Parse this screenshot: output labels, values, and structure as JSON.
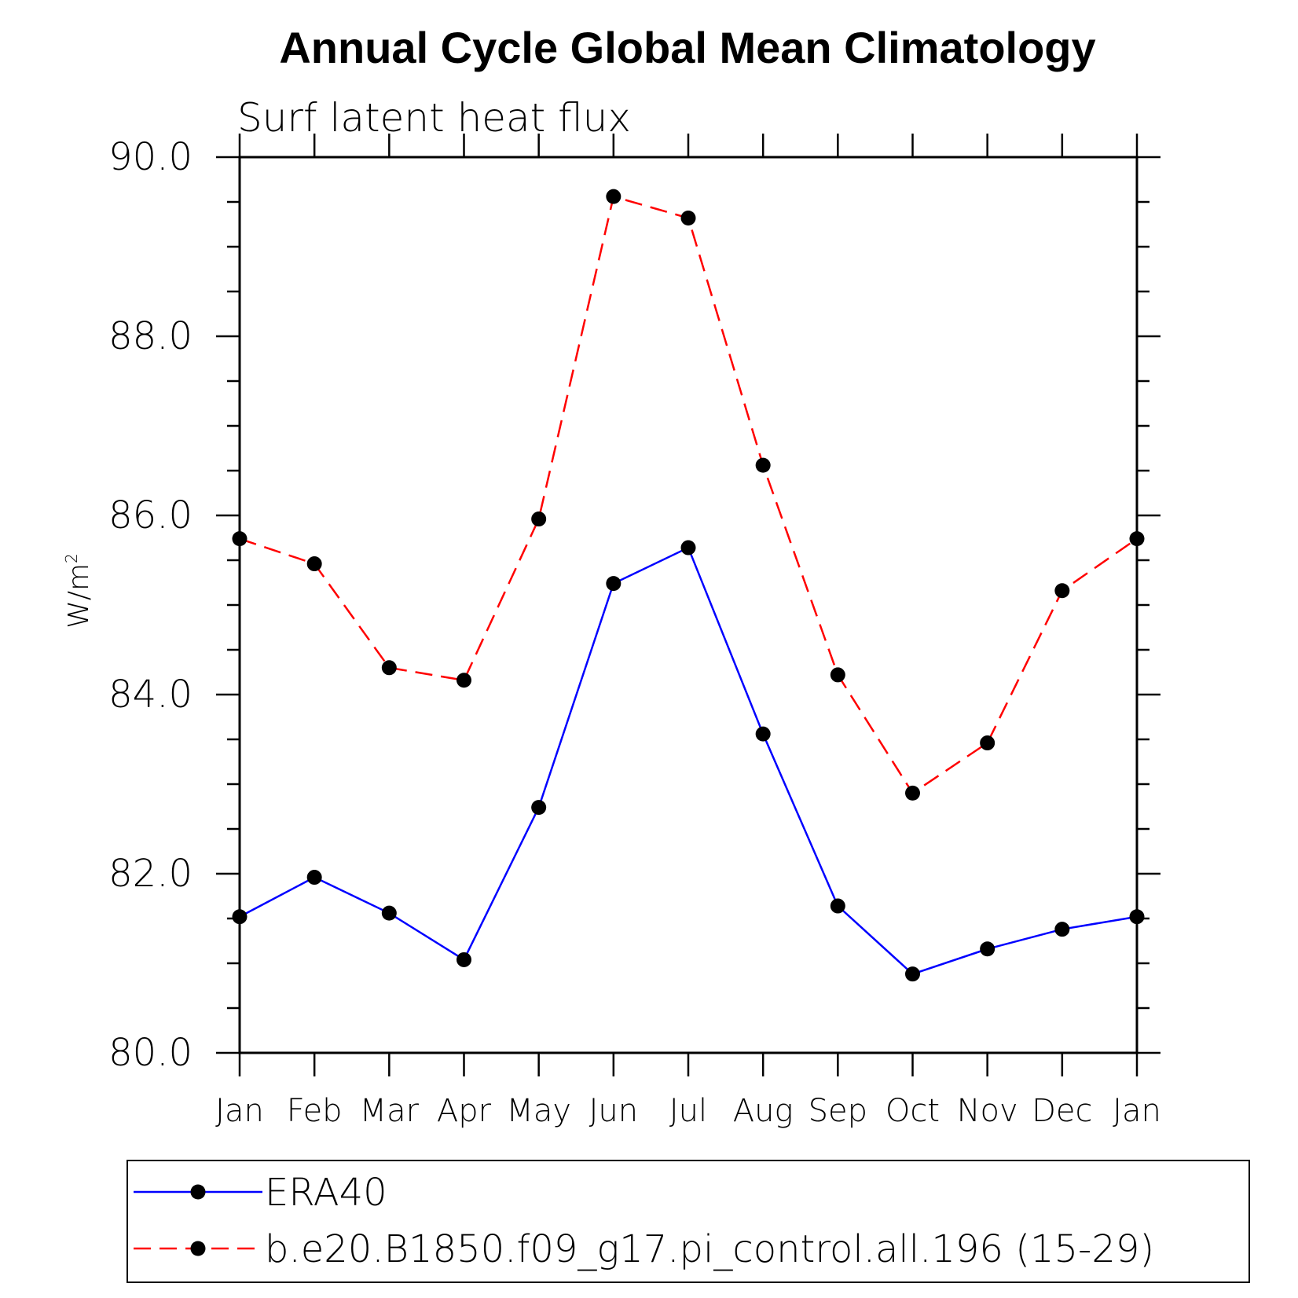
{
  "chart_data": {
    "type": "line",
    "title": "Annual Cycle Global Mean Climatology",
    "subtitle": "Surf latent heat flux",
    "ylabel_base": "W/m",
    "ylabel_sup": "2",
    "xlabel": "",
    "categories": [
      "Jan",
      "Feb",
      "Mar",
      "Apr",
      "May",
      "Jun",
      "Jul",
      "Aug",
      "Sep",
      "Oct",
      "Nov",
      "Dec",
      "Jan"
    ],
    "ylim": [
      80.0,
      90.0
    ],
    "yticks": [
      "80.0",
      "82.0",
      "84.0",
      "86.0",
      "88.0",
      "90.0"
    ],
    "grid": false,
    "legend_position": "bottom",
    "series": [
      {
        "name": "ERA40",
        "color": "#0000ff",
        "dashed": false,
        "marker": "circle",
        "values": [
          81.52,
          81.96,
          81.56,
          81.04,
          82.74,
          85.24,
          85.64,
          83.56,
          81.64,
          80.88,
          81.16,
          81.38,
          81.52
        ]
      },
      {
        "name": "b.e20.B1850.f09_g17.pi_control.all.196 (15-29)",
        "color": "#ff0000",
        "dashed": true,
        "marker": "circle",
        "values": [
          85.74,
          85.46,
          84.3,
          84.16,
          85.96,
          89.56,
          89.32,
          86.56,
          84.22,
          82.9,
          83.46,
          85.16,
          85.74
        ]
      }
    ]
  }
}
